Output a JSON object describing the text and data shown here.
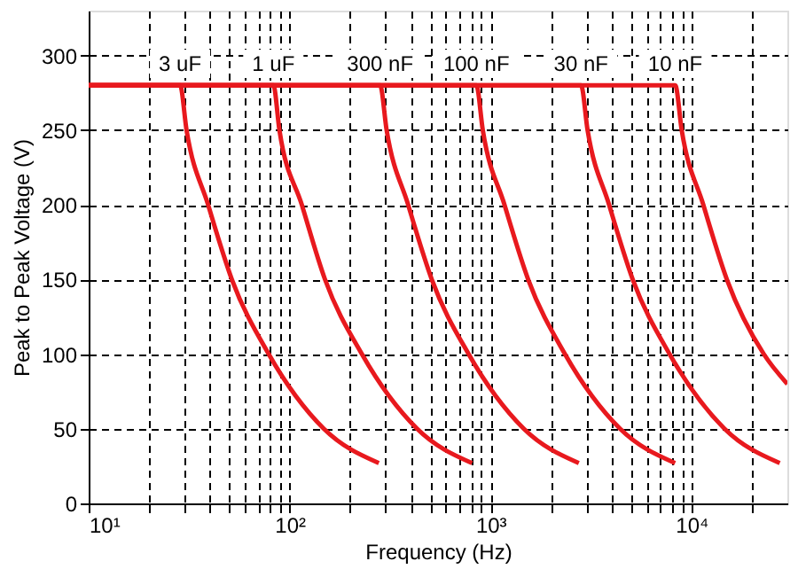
{
  "chart_data": {
    "type": "line",
    "xlabel": "Frequency (Hz)",
    "ylabel": "Peak to Peak Voltage (V)",
    "log": "x",
    "xlim": [
      10,
      30000
    ],
    "ylim": [
      0,
      330
    ],
    "xticks": [
      {
        "value": 10,
        "label": "10¹"
      },
      {
        "value": 20,
        "label": null
      },
      {
        "value": 30,
        "label": null
      },
      {
        "value": 40,
        "label": null
      },
      {
        "value": 50,
        "label": null
      },
      {
        "value": 60,
        "label": null
      },
      {
        "value": 70,
        "label": null
      },
      {
        "value": 80,
        "label": null
      },
      {
        "value": 90,
        "label": null
      },
      {
        "value": 100,
        "label": "10²"
      },
      {
        "value": 200,
        "label": null
      },
      {
        "value": 300,
        "label": null
      },
      {
        "value": 400,
        "label": null
      },
      {
        "value": 500,
        "label": null
      },
      {
        "value": 600,
        "label": null
      },
      {
        "value": 700,
        "label": null
      },
      {
        "value": 800,
        "label": null
      },
      {
        "value": 900,
        "label": null
      },
      {
        "value": 1000,
        "label": "10³"
      },
      {
        "value": 2000,
        "label": null
      },
      {
        "value": 3000,
        "label": null
      },
      {
        "value": 4000,
        "label": null
      },
      {
        "value": 5000,
        "label": null
      },
      {
        "value": 6000,
        "label": null
      },
      {
        "value": 7000,
        "label": null
      },
      {
        "value": 8000,
        "label": null
      },
      {
        "value": 9000,
        "label": null
      },
      {
        "value": 10000,
        "label": "10⁴"
      },
      {
        "value": 20000,
        "label": null
      }
    ],
    "yticks": [
      0,
      50,
      100,
      150,
      200,
      250,
      300
    ],
    "grid": true,
    "legend": false,
    "marker": "none",
    "series": [
      {
        "name": "3 uF",
        "color": "#e8191e",
        "x": [
          10,
          28.5,
          30.7,
          39.3,
          51.6,
          78.7,
          148,
          278
        ],
        "values": [
          280,
          280,
          250,
          200,
          150,
          100,
          50,
          27
        ]
      },
      {
        "name": "1 uF",
        "color": "#e8191e",
        "x": [
          10,
          83,
          89,
          115,
          150,
          229,
          431,
          809
        ],
        "values": [
          280,
          280,
          250,
          200,
          150,
          100,
          50,
          27
        ]
      },
      {
        "name": "300 nF",
        "color": "#e8191e",
        "x": [
          10,
          282,
          304,
          389,
          510,
          778,
          1464,
          2750
        ],
        "values": [
          280,
          280,
          250,
          200,
          150,
          100,
          50,
          27
        ]
      },
      {
        "name": "100 nF",
        "color": "#e8191e",
        "x": [
          10,
          850,
          915,
          1173,
          1539,
          2346,
          4412,
          8290
        ],
        "values": [
          280,
          280,
          250,
          200,
          150,
          100,
          50,
          27
        ]
      },
      {
        "name": "30 nF",
        "color": "#e8191e",
        "x": [
          10,
          2820,
          3040,
          3890,
          5100,
          7780,
          14600,
          27500
        ],
        "values": [
          280,
          280,
          250,
          200,
          150,
          100,
          50,
          27
        ]
      },
      {
        "name": "10 nF",
        "color": "#e8191e",
        "x": [
          10,
          8300,
          8940,
          11450,
          15000,
          22900,
          30000
        ],
        "values": [
          280,
          280,
          250,
          200,
          150,
          100,
          80
        ]
      }
    ]
  }
}
